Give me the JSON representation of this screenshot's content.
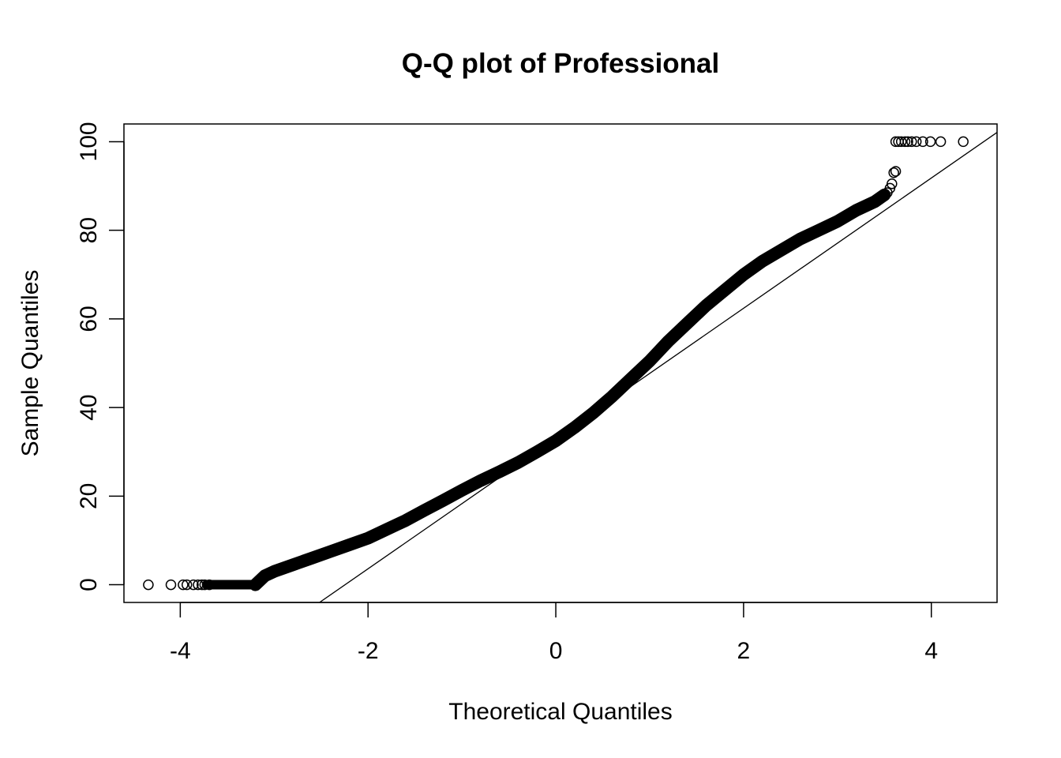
{
  "chart_data": {
    "type": "scatter",
    "title": "Q-Q plot of Professional",
    "xlabel": "Theoretical Quantiles",
    "ylabel": "Sample Quantiles",
    "xlim": [
      -4.6,
      4.7
    ],
    "ylim": [
      -4,
      104
    ],
    "x_ticks": [
      -4,
      -2,
      0,
      2,
      4
    ],
    "x_tick_labels": [
      "-4",
      "-2",
      "0",
      "2",
      "4"
    ],
    "y_ticks": [
      0,
      20,
      40,
      60,
      80,
      100
    ],
    "y_tick_labels": [
      "0",
      "20",
      "40",
      "60",
      "80",
      "100"
    ],
    "grid": false,
    "reference_line": {
      "intercept": 33.0,
      "slope": 14.7
    },
    "curve": [
      [
        -3.2,
        0.0
      ],
      [
        -3.1,
        2.0
      ],
      [
        -3.0,
        3.0
      ],
      [
        -2.8,
        4.5
      ],
      [
        -2.6,
        6.0
      ],
      [
        -2.4,
        7.5
      ],
      [
        -2.2,
        9.0
      ],
      [
        -2.0,
        10.5
      ],
      [
        -1.8,
        12.5
      ],
      [
        -1.6,
        14.5
      ],
      [
        -1.4,
        16.8
      ],
      [
        -1.2,
        19.0
      ],
      [
        -1.0,
        21.3
      ],
      [
        -0.8,
        23.5
      ],
      [
        -0.6,
        25.5
      ],
      [
        -0.4,
        27.6
      ],
      [
        -0.2,
        30.0
      ],
      [
        0.0,
        32.5
      ],
      [
        0.2,
        35.5
      ],
      [
        0.4,
        38.8
      ],
      [
        0.6,
        42.5
      ],
      [
        0.8,
        46.5
      ],
      [
        1.0,
        50.5
      ],
      [
        1.2,
        55.0
      ],
      [
        1.4,
        59.0
      ],
      [
        1.6,
        63.0
      ],
      [
        1.8,
        66.5
      ],
      [
        2.0,
        70.0
      ],
      [
        2.2,
        73.0
      ],
      [
        2.4,
        75.5
      ],
      [
        2.6,
        78.0
      ],
      [
        2.8,
        80.0
      ],
      [
        3.0,
        82.0
      ],
      [
        3.2,
        84.5
      ],
      [
        3.4,
        86.5
      ],
      [
        3.5,
        88.0
      ]
    ],
    "curve_left": -3.2,
    "curve_right": 3.5,
    "flat_left": {
      "x_from": -3.72,
      "x_to": -3.2,
      "y": 0
    },
    "points": [
      [
        -4.34,
        0
      ],
      [
        -4.1,
        0
      ],
      [
        -3.97,
        0
      ],
      [
        -3.93,
        0
      ],
      [
        -3.86,
        0
      ],
      [
        -3.81,
        0
      ],
      [
        -3.77,
        0
      ],
      [
        -3.74,
        0
      ],
      [
        -3.69,
        0
      ],
      [
        3.53,
        88.5
      ],
      [
        3.56,
        89.5
      ],
      [
        3.58,
        90.5
      ],
      [
        3.6,
        93.0
      ],
      [
        3.62,
        93.3
      ],
      [
        3.62,
        100
      ],
      [
        3.65,
        100
      ],
      [
        3.68,
        100
      ],
      [
        3.72,
        100
      ],
      [
        3.75,
        100
      ],
      [
        3.79,
        100
      ],
      [
        3.84,
        100
      ],
      [
        3.91,
        100
      ],
      [
        3.99,
        100
      ],
      [
        4.1,
        100
      ],
      [
        4.34,
        100
      ]
    ],
    "colors": {
      "points": "#000000",
      "line": "#000000",
      "background": "#ffffff"
    }
  }
}
